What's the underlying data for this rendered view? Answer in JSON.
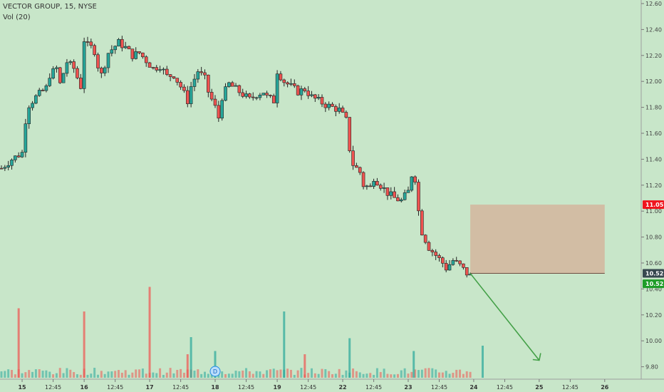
{
  "header": {
    "title": "VECTOR GROUP, 15, NYSE",
    "volume_label": "Vol (20)"
  },
  "colors": {
    "background": "#c8e6c9",
    "bull": "#26a69a",
    "bear": "#ef5350",
    "candle_outline": "#222222",
    "zone_fill": "#d4b59e",
    "arrow": "#43a047",
    "price_tag_red": "#f0141e",
    "price_tag_dark": "#37474f",
    "price_tag_green": "#1f9d29"
  },
  "chart_data": {
    "type": "candlestick",
    "y_axis": {
      "range": [
        9.6,
        12.65
      ],
      "ticks": [
        "12.60",
        "12.40",
        "12.20",
        "12.00",
        "11.80",
        "11.60",
        "11.40",
        "11.20",
        "11.00",
        "10.80",
        "10.60",
        "10.40",
        "10.20",
        "10.00",
        "9.80"
      ]
    },
    "x_axis": {
      "range": [
        0,
        93
      ],
      "ticks": [
        {
          "x": 3,
          "label": "15",
          "bold": true
        },
        {
          "x": 7.5,
          "label": "12:45"
        },
        {
          "x": 12,
          "label": "16",
          "bold": true
        },
        {
          "x": 16.5,
          "label": "12:45"
        },
        {
          "x": 21.5,
          "label": "17",
          "bold": true
        },
        {
          "x": 26,
          "label": "12:45"
        },
        {
          "x": 31,
          "label": "18",
          "bold": true
        },
        {
          "x": 35.5,
          "label": "12:45"
        },
        {
          "x": 40,
          "label": "19",
          "bold": true
        },
        {
          "x": 44.5,
          "label": "12:45"
        },
        {
          "x": 49.5,
          "label": "22",
          "bold": true
        },
        {
          "x": 54,
          "label": "12:45"
        },
        {
          "x": 59,
          "label": "23",
          "bold": true
        },
        {
          "x": 63.5,
          "label": "12:45"
        },
        {
          "x": 68.5,
          "label": "24",
          "bold": true
        },
        {
          "x": 73,
          "label": "12:45"
        },
        {
          "x": 78,
          "label": "25",
          "bold": true
        },
        {
          "x": 82.5,
          "label": "12:45"
        },
        {
          "x": 87.5,
          "label": "26",
          "bold": true
        }
      ]
    },
    "candle_anchors": [
      [
        0,
        11.33
      ],
      [
        1.5,
        11.4
      ],
      [
        3,
        11.45
      ],
      [
        3.5,
        11.7
      ],
      [
        4,
        11.82
      ],
      [
        5,
        11.88
      ],
      [
        6.5,
        11.95
      ],
      [
        7,
        12.05
      ],
      [
        8,
        12.1
      ],
      [
        8.5,
        11.98
      ],
      [
        9.5,
        12.15
      ],
      [
        10.5,
        12.1
      ],
      [
        11.5,
        11.96
      ],
      [
        12,
        12.32
      ],
      [
        12.8,
        12.25
      ],
      [
        13.3,
        12.28
      ],
      [
        14,
        12.12
      ],
      [
        14.5,
        12.05
      ],
      [
        15.5,
        12.22
      ],
      [
        17,
        12.3
      ],
      [
        18,
        12.26
      ],
      [
        19,
        12.2
      ],
      [
        20,
        12.22
      ],
      [
        21,
        12.16
      ],
      [
        22,
        12.1
      ],
      [
        23,
        12.12
      ],
      [
        24,
        12.04
      ],
      [
        25,
        12.05
      ],
      [
        26,
        11.96
      ],
      [
        27,
        11.85
      ],
      [
        27.5,
        11.96
      ],
      [
        28.5,
        12.08
      ],
      [
        29.5,
        12.02
      ],
      [
        30,
        11.92
      ],
      [
        31,
        11.8
      ],
      [
        31.5,
        11.72
      ],
      [
        32,
        11.88
      ],
      [
        33,
        11.98
      ],
      [
        34,
        11.94
      ],
      [
        35,
        11.9
      ],
      [
        36,
        11.86
      ],
      [
        37,
        11.9
      ],
      [
        38,
        11.92
      ],
      [
        38.5,
        11.88
      ],
      [
        39.5,
        11.85
      ],
      [
        40,
        12.08
      ],
      [
        41,
        12.0
      ],
      [
        42,
        11.96
      ],
      [
        43,
        11.92
      ],
      [
        44,
        11.94
      ],
      [
        45,
        11.88
      ],
      [
        46,
        11.85
      ],
      [
        47,
        11.82
      ],
      [
        48,
        11.8
      ],
      [
        49,
        11.78
      ],
      [
        50,
        11.7
      ],
      [
        50.5,
        11.48
      ],
      [
        51,
        11.36
      ],
      [
        52,
        11.3
      ],
      [
        52.5,
        11.2
      ],
      [
        53.5,
        11.18
      ],
      [
        54,
        11.26
      ],
      [
        55,
        11.2
      ],
      [
        56,
        11.14
      ],
      [
        57,
        11.1
      ],
      [
        58,
        11.08
      ],
      [
        59,
        11.15
      ],
      [
        59.5,
        11.28
      ],
      [
        60,
        11.25
      ],
      [
        60.5,
        11.0
      ],
      [
        61,
        10.84
      ],
      [
        62,
        10.72
      ],
      [
        63,
        10.66
      ],
      [
        64,
        10.6
      ],
      [
        64.5,
        10.56
      ],
      [
        65.5,
        10.62
      ],
      [
        66.5,
        10.58
      ],
      [
        67.5,
        10.52
      ],
      [
        68,
        10.5
      ]
    ],
    "zone": {
      "x_start": 68,
      "x_end": 87.5,
      "y_top": 11.05,
      "y_bottom": 10.52
    },
    "projection_arrow": {
      "from": [
        68,
        10.52
      ],
      "to": [
        78,
        9.85
      ]
    },
    "event_marker": {
      "x": 31,
      "label": "D"
    },
    "price_tags": [
      {
        "value": "11.05",
        "color_key": "price_tag_red"
      },
      {
        "value": "10.52",
        "color_key": "price_tag_dark"
      },
      {
        "value": "10.52",
        "color_key": "price_tag_green"
      }
    ],
    "volume_spikes": [
      {
        "x": 2.5,
        "v": 0.65,
        "bear": true
      },
      {
        "x": 12,
        "v": 0.62,
        "bear": true
      },
      {
        "x": 21.5,
        "v": 0.85,
        "bear": true
      },
      {
        "x": 27.5,
        "v": 0.38,
        "bear": false
      },
      {
        "x": 31,
        "v": 0.25,
        "bear": false
      },
      {
        "x": 41,
        "v": 0.62,
        "bear": false
      },
      {
        "x": 50.5,
        "v": 0.37,
        "bear": false
      },
      {
        "x": 59.8,
        "v": 0.25,
        "bear": false
      },
      {
        "x": 69.8,
        "v": 0.3,
        "bear": false
      },
      {
        "x": 27,
        "v": 0.22,
        "bear": true
      },
      {
        "x": 44,
        "v": 0.22,
        "bear": true
      }
    ]
  }
}
